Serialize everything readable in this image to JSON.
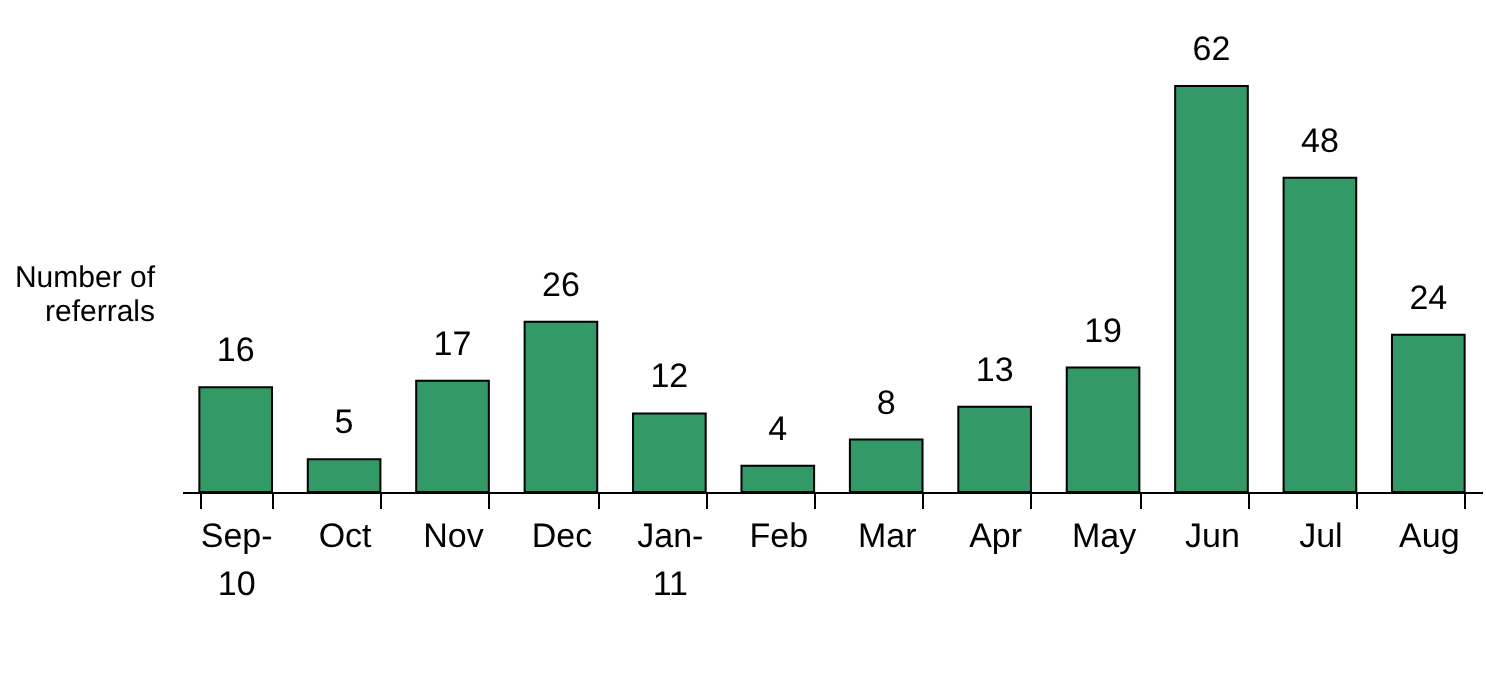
{
  "chart_data": {
    "type": "bar",
    "ylabel": "Number of referrals",
    "categories": [
      "Sep-10",
      "Oct",
      "Nov",
      "Dec",
      "Jan-11",
      "Feb",
      "Mar",
      "Apr",
      "May",
      "Jun",
      "Jul",
      "Aug"
    ],
    "values": [
      16,
      5,
      17,
      26,
      12,
      4,
      8,
      13,
      19,
      62,
      48,
      24
    ],
    "color": "#339966",
    "data_labels": true,
    "tick_labels": "x",
    "grid": false
  }
}
